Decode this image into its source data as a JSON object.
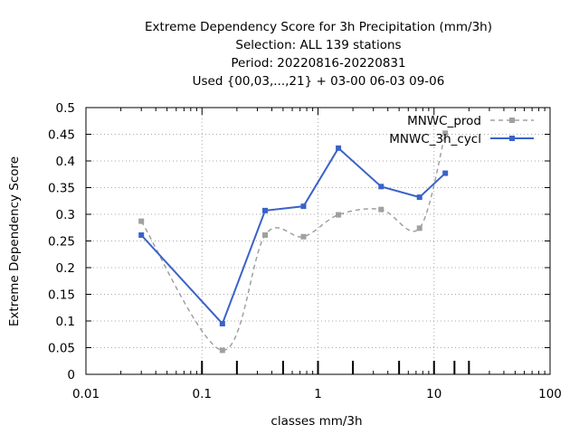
{
  "chart_data": {
    "type": "line",
    "title_lines": [
      "Extreme Dependency Score  for 3h Precipitation (mm/3h)",
      "Selection: ALL     139 stations",
      "Period: 20220816-20220831",
      "Used {00,03,...,21} + 03-00 06-03 09-06"
    ],
    "xlabel": "classes mm/3h",
    "ylabel": "Extreme Dependency Score",
    "xscale": "log",
    "xlim": [
      0.01,
      100
    ],
    "ylim": [
      0,
      0.5
    ],
    "xticks": [
      0.01,
      0.1,
      1,
      10,
      100
    ],
    "xtick_labels": [
      "0.01",
      "0.1",
      "1",
      "10",
      "100"
    ],
    "yticks": [
      0,
      0.05,
      0.1,
      0.15,
      0.2,
      0.25,
      0.3,
      0.35,
      0.4,
      0.45,
      0.5
    ],
    "ytick_labels": [
      "0",
      "0.05",
      "0.1",
      "0.15",
      "0.2",
      "0.25",
      "0.3",
      "0.35",
      "0.4",
      "0.45",
      "0.5"
    ],
    "grid": true,
    "legend_position": "top-right",
    "class_thresholds": [
      0.1,
      0.2,
      0.5,
      1,
      2,
      5,
      10,
      15,
      20
    ],
    "series": [
      {
        "name": "MNWC_prod",
        "color": "#a0a0a0",
        "style": "dashed",
        "x": [
          0.03,
          0.15,
          0.35,
          0.75,
          1.5,
          3.5,
          7.5,
          12.5
        ],
        "y": [
          0.287,
          0.045,
          0.261,
          0.258,
          0.299,
          0.309,
          0.274,
          0.452
        ]
      },
      {
        "name": "MNWC_3h_cycl",
        "color": "#3a62c8",
        "style": "solid",
        "x": [
          0.03,
          0.15,
          0.35,
          0.75,
          1.5,
          3.5,
          7.5,
          12.5
        ],
        "y": [
          0.261,
          0.095,
          0.307,
          0.315,
          0.424,
          0.352,
          0.332,
          0.377
        ]
      }
    ]
  }
}
